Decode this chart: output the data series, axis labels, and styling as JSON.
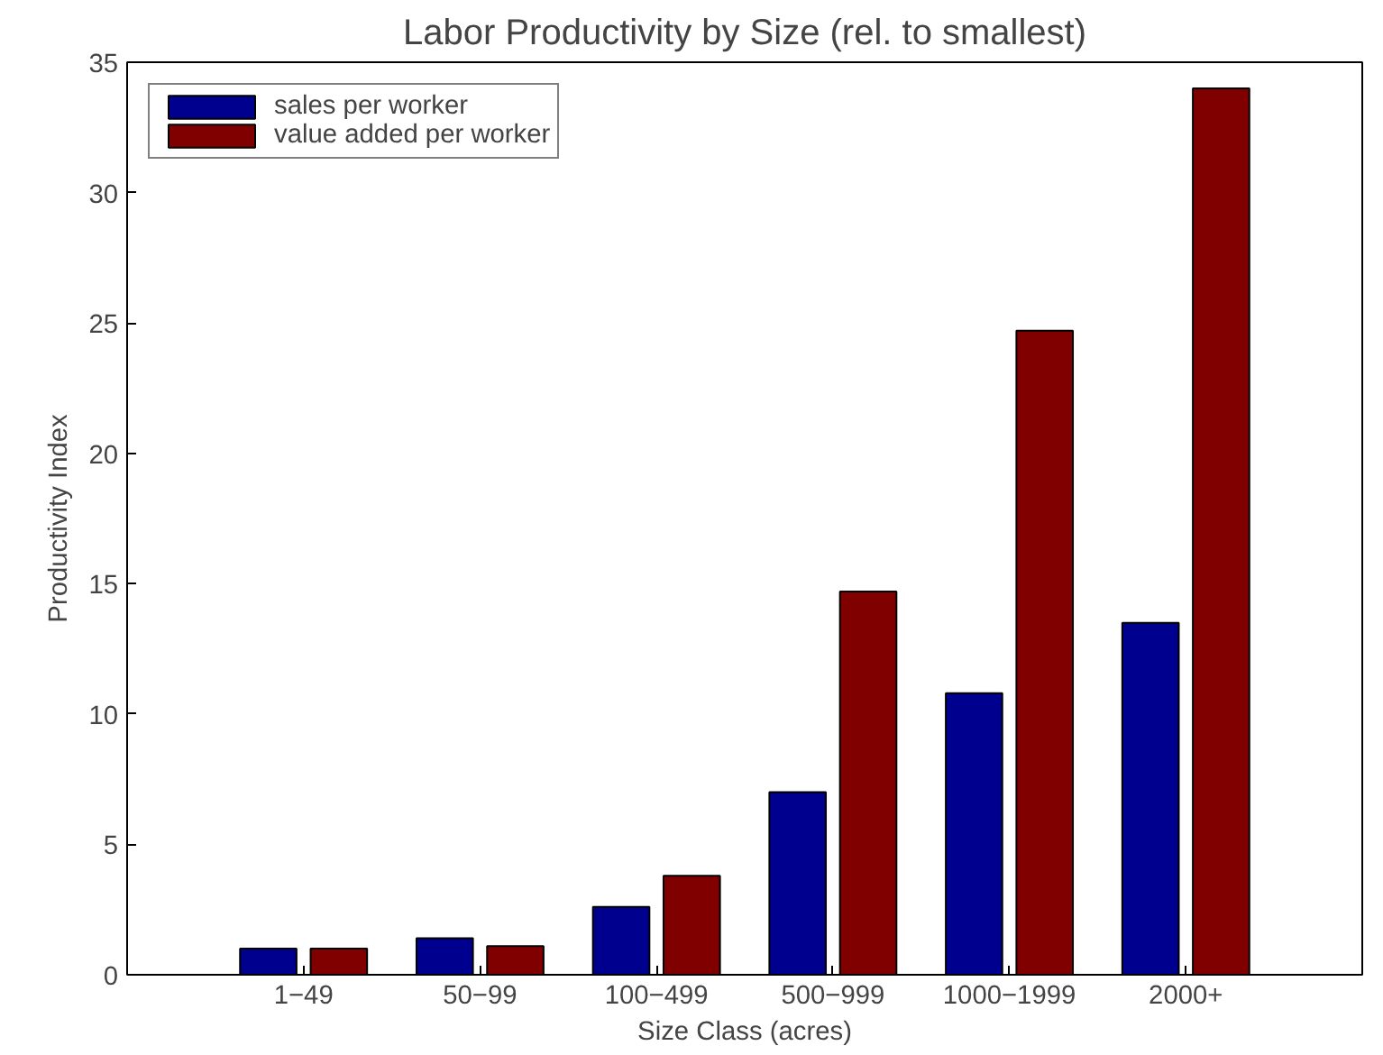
{
  "chart_data": {
    "type": "bar",
    "title": "Labor Productivity by Size (rel. to smallest)",
    "xlabel": "Size Class (acres)",
    "ylabel": "Productivity Index",
    "categories": [
      "1−49",
      "50−99",
      "100−499",
      "500−999",
      "1000−1999",
      "2000+"
    ],
    "series": [
      {
        "name": "sales per worker",
        "color": "#00008f",
        "values": [
          1.0,
          1.4,
          2.6,
          7.0,
          10.8,
          13.5
        ]
      },
      {
        "name": "value added per worker",
        "color": "#800000",
        "values": [
          1.0,
          1.1,
          3.8,
          14.7,
          24.7,
          34.0
        ]
      }
    ],
    "ylim": [
      0,
      35
    ],
    "yticks": [
      0,
      5,
      10,
      15,
      20,
      25,
      30,
      35
    ],
    "grid": false,
    "legend": "top left"
  }
}
